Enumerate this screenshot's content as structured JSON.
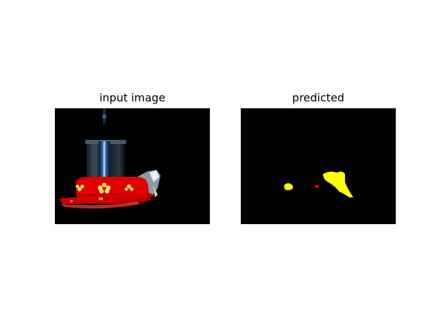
{
  "panels": {
    "left_title": "input image",
    "right_title": "predicted"
  },
  "colors": {
    "background": "#000000",
    "feeder_red": "#e00000",
    "feeder_blue": "#2a5fa8",
    "mask_yellow": "#ffff00",
    "mask_red": "#ff0000"
  }
}
